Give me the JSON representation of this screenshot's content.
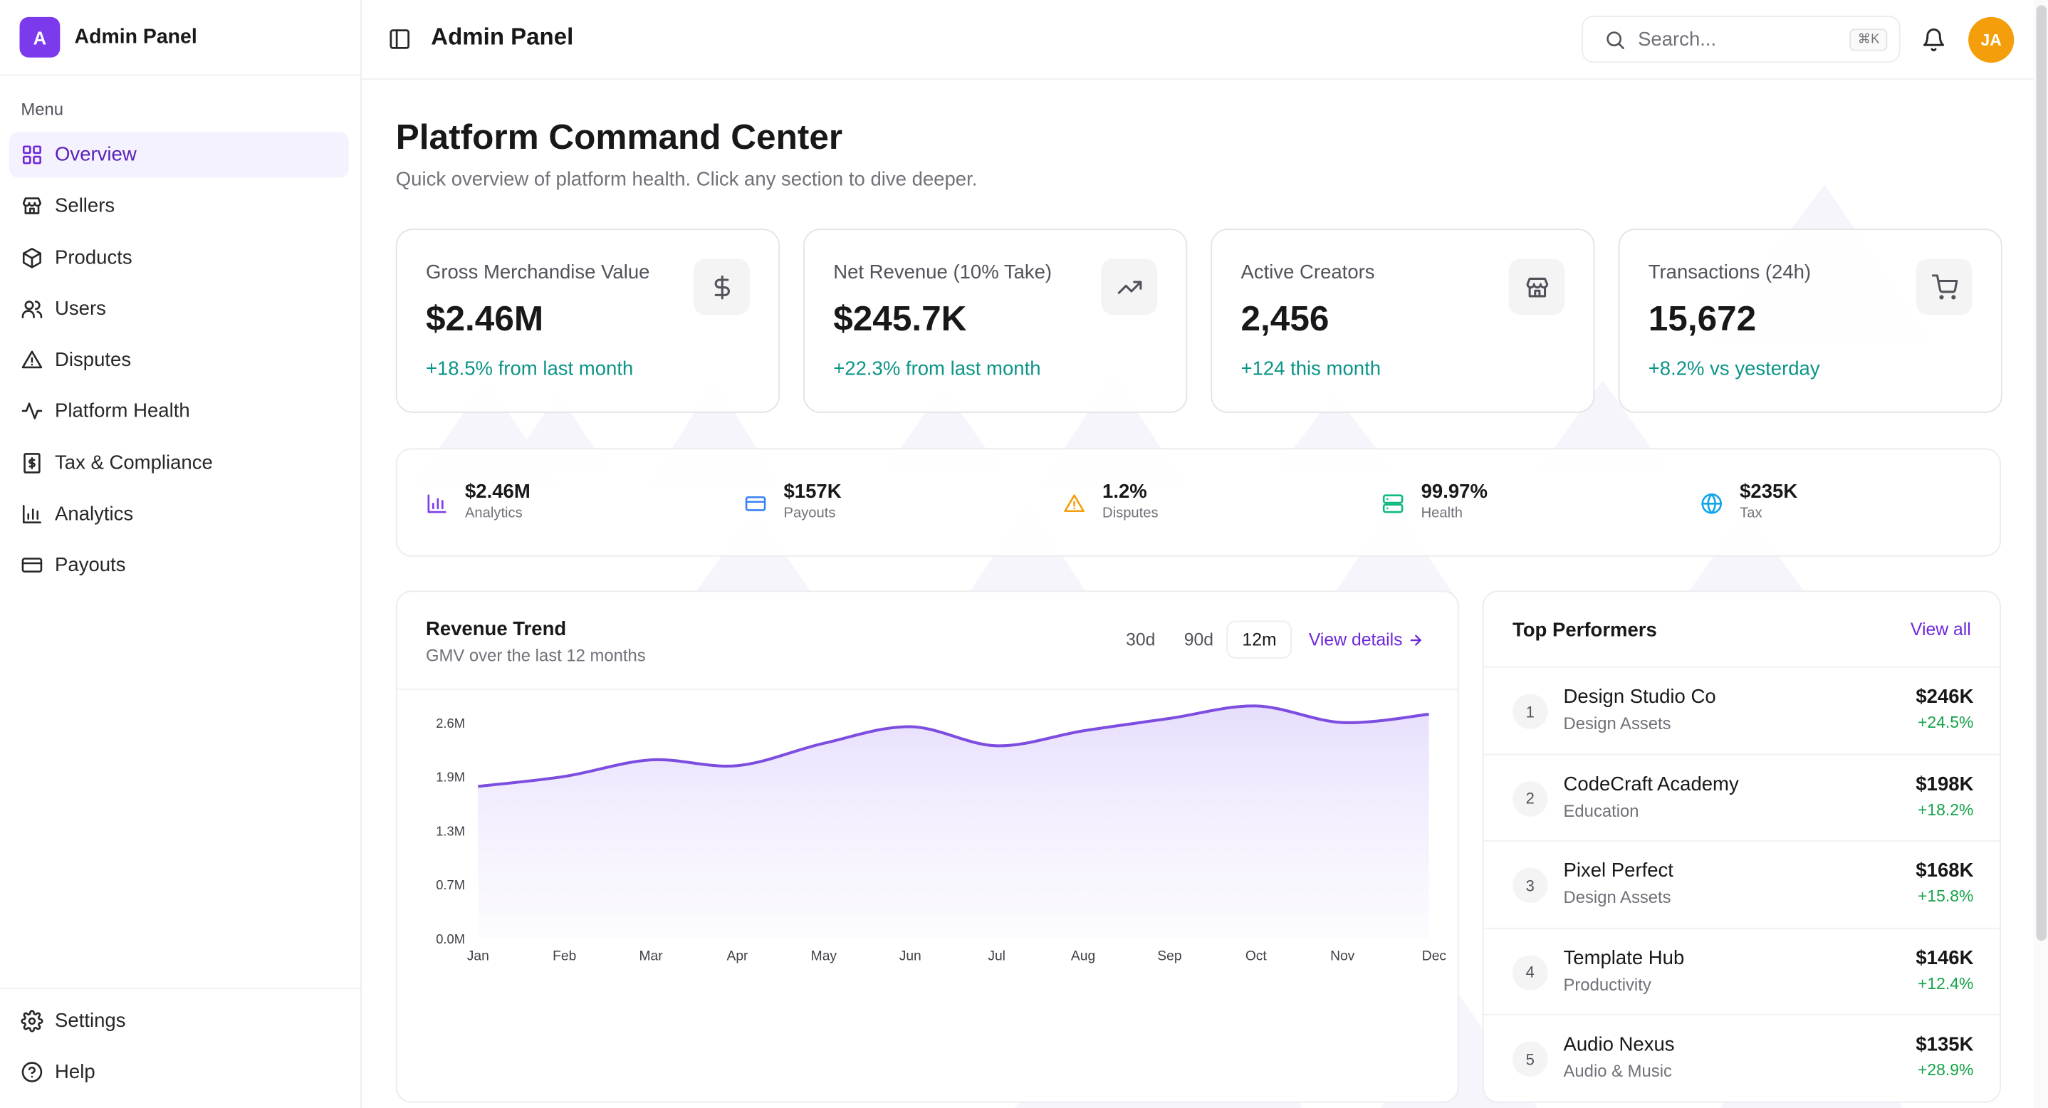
{
  "brand": {
    "logo_letter": "A",
    "name": "Admin Panel"
  },
  "sidebar": {
    "menu_label": "Menu",
    "items": [
      {
        "label": "Overview",
        "icon": "grid-icon",
        "active": true
      },
      {
        "label": "Sellers",
        "icon": "store-icon"
      },
      {
        "label": "Products",
        "icon": "box-icon"
      },
      {
        "label": "Users",
        "icon": "users-icon"
      },
      {
        "label": "Disputes",
        "icon": "warning-icon"
      },
      {
        "label": "Platform Health",
        "icon": "activity-icon"
      },
      {
        "label": "Tax & Compliance",
        "icon": "receipt-dollar-icon"
      },
      {
        "label": "Analytics",
        "icon": "bar-chart-icon"
      },
      {
        "label": "Payouts",
        "icon": "credit-card-icon"
      }
    ],
    "bottom_items": [
      {
        "label": "Settings",
        "icon": "gear-icon"
      },
      {
        "label": "Help",
        "icon": "help-circle-icon"
      }
    ]
  },
  "header": {
    "title": "Admin Panel",
    "search_placeholder": "Search...",
    "search_shortcut": "⌘K",
    "avatar_initials": "JA"
  },
  "page": {
    "title": "Platform Command Center",
    "subtitle": "Quick overview of platform health. Click any section to dive deeper."
  },
  "stats": [
    {
      "label": "Gross Merchandise Value",
      "value": "$2.46M",
      "change": "+18.5% from last month",
      "icon": "dollar-icon"
    },
    {
      "label": "Net Revenue (10% Take)",
      "value": "$245.7K",
      "change": "+22.3% from last month",
      "icon": "trending-up-icon"
    },
    {
      "label": "Active Creators",
      "value": "2,456",
      "change": "+124 this month",
      "icon": "store-icon"
    },
    {
      "label": "Transactions (24h)",
      "value": "15,672",
      "change": "+8.2% vs yesterday",
      "icon": "cart-icon"
    }
  ],
  "metrics": [
    {
      "value": "$2.46M",
      "label": "Analytics",
      "icon": "bar-chart-icon",
      "color": "#7c3aed"
    },
    {
      "value": "$157K",
      "label": "Payouts",
      "icon": "credit-card-icon",
      "color": "#3b82f6"
    },
    {
      "value": "1.2%",
      "label": "Disputes",
      "icon": "warning-icon",
      "color": "#f59e0b"
    },
    {
      "value": "99.97%",
      "label": "Health",
      "icon": "server-icon",
      "color": "#10b981"
    },
    {
      "value": "$235K",
      "label": "Tax",
      "icon": "globe-icon",
      "color": "#0ea5e9"
    }
  ],
  "revenue": {
    "title": "Revenue Trend",
    "subtitle": "GMV over the last 12 months",
    "ranges": [
      "30d",
      "90d",
      "12m"
    ],
    "active_range": "12m",
    "view_details": "View details"
  },
  "chart_data": {
    "type": "area",
    "title": "Revenue Trend",
    "categories": [
      "Jan",
      "Feb",
      "Mar",
      "Apr",
      "May",
      "Jun",
      "Jul",
      "Aug",
      "Sep",
      "Oct",
      "Nov",
      "Dec"
    ],
    "series": [
      {
        "name": "GMV",
        "values": [
          1.83,
          1.95,
          2.15,
          2.08,
          2.35,
          2.55,
          2.32,
          2.5,
          2.65,
          2.8,
          2.6,
          2.7
        ]
      }
    ],
    "y_ticks": [
      "0.0M",
      "0.7M",
      "1.3M",
      "1.9M",
      "2.6M"
    ],
    "y_tick_values": [
      0,
      0.65,
      1.3,
      1.95,
      2.6
    ],
    "ylim": [
      0,
      2.6
    ],
    "grid": false,
    "colors": {
      "line": "#7c4ddf",
      "fill": "#ede7fd"
    }
  },
  "performers": {
    "title": "Top Performers",
    "view_all": "View all",
    "items": [
      {
        "rank": "1",
        "name": "Design Studio Co",
        "category": "Design Assets",
        "amount": "$246K",
        "growth": "+24.5%"
      },
      {
        "rank": "2",
        "name": "CodeCraft Academy",
        "category": "Education",
        "amount": "$198K",
        "growth": "+18.2%"
      },
      {
        "rank": "3",
        "name": "Pixel Perfect",
        "category": "Design Assets",
        "amount": "$168K",
        "growth": "+15.8%"
      },
      {
        "rank": "4",
        "name": "Template Hub",
        "category": "Productivity",
        "amount": "$146K",
        "growth": "+12.4%"
      },
      {
        "rank": "5",
        "name": "Audio Nexus",
        "category": "Audio & Music",
        "amount": "$135K",
        "growth": "+28.9%"
      }
    ]
  },
  "colors": {
    "accent": "#7c3aed",
    "positive": "#16a34a",
    "teal": "#0d9488"
  }
}
